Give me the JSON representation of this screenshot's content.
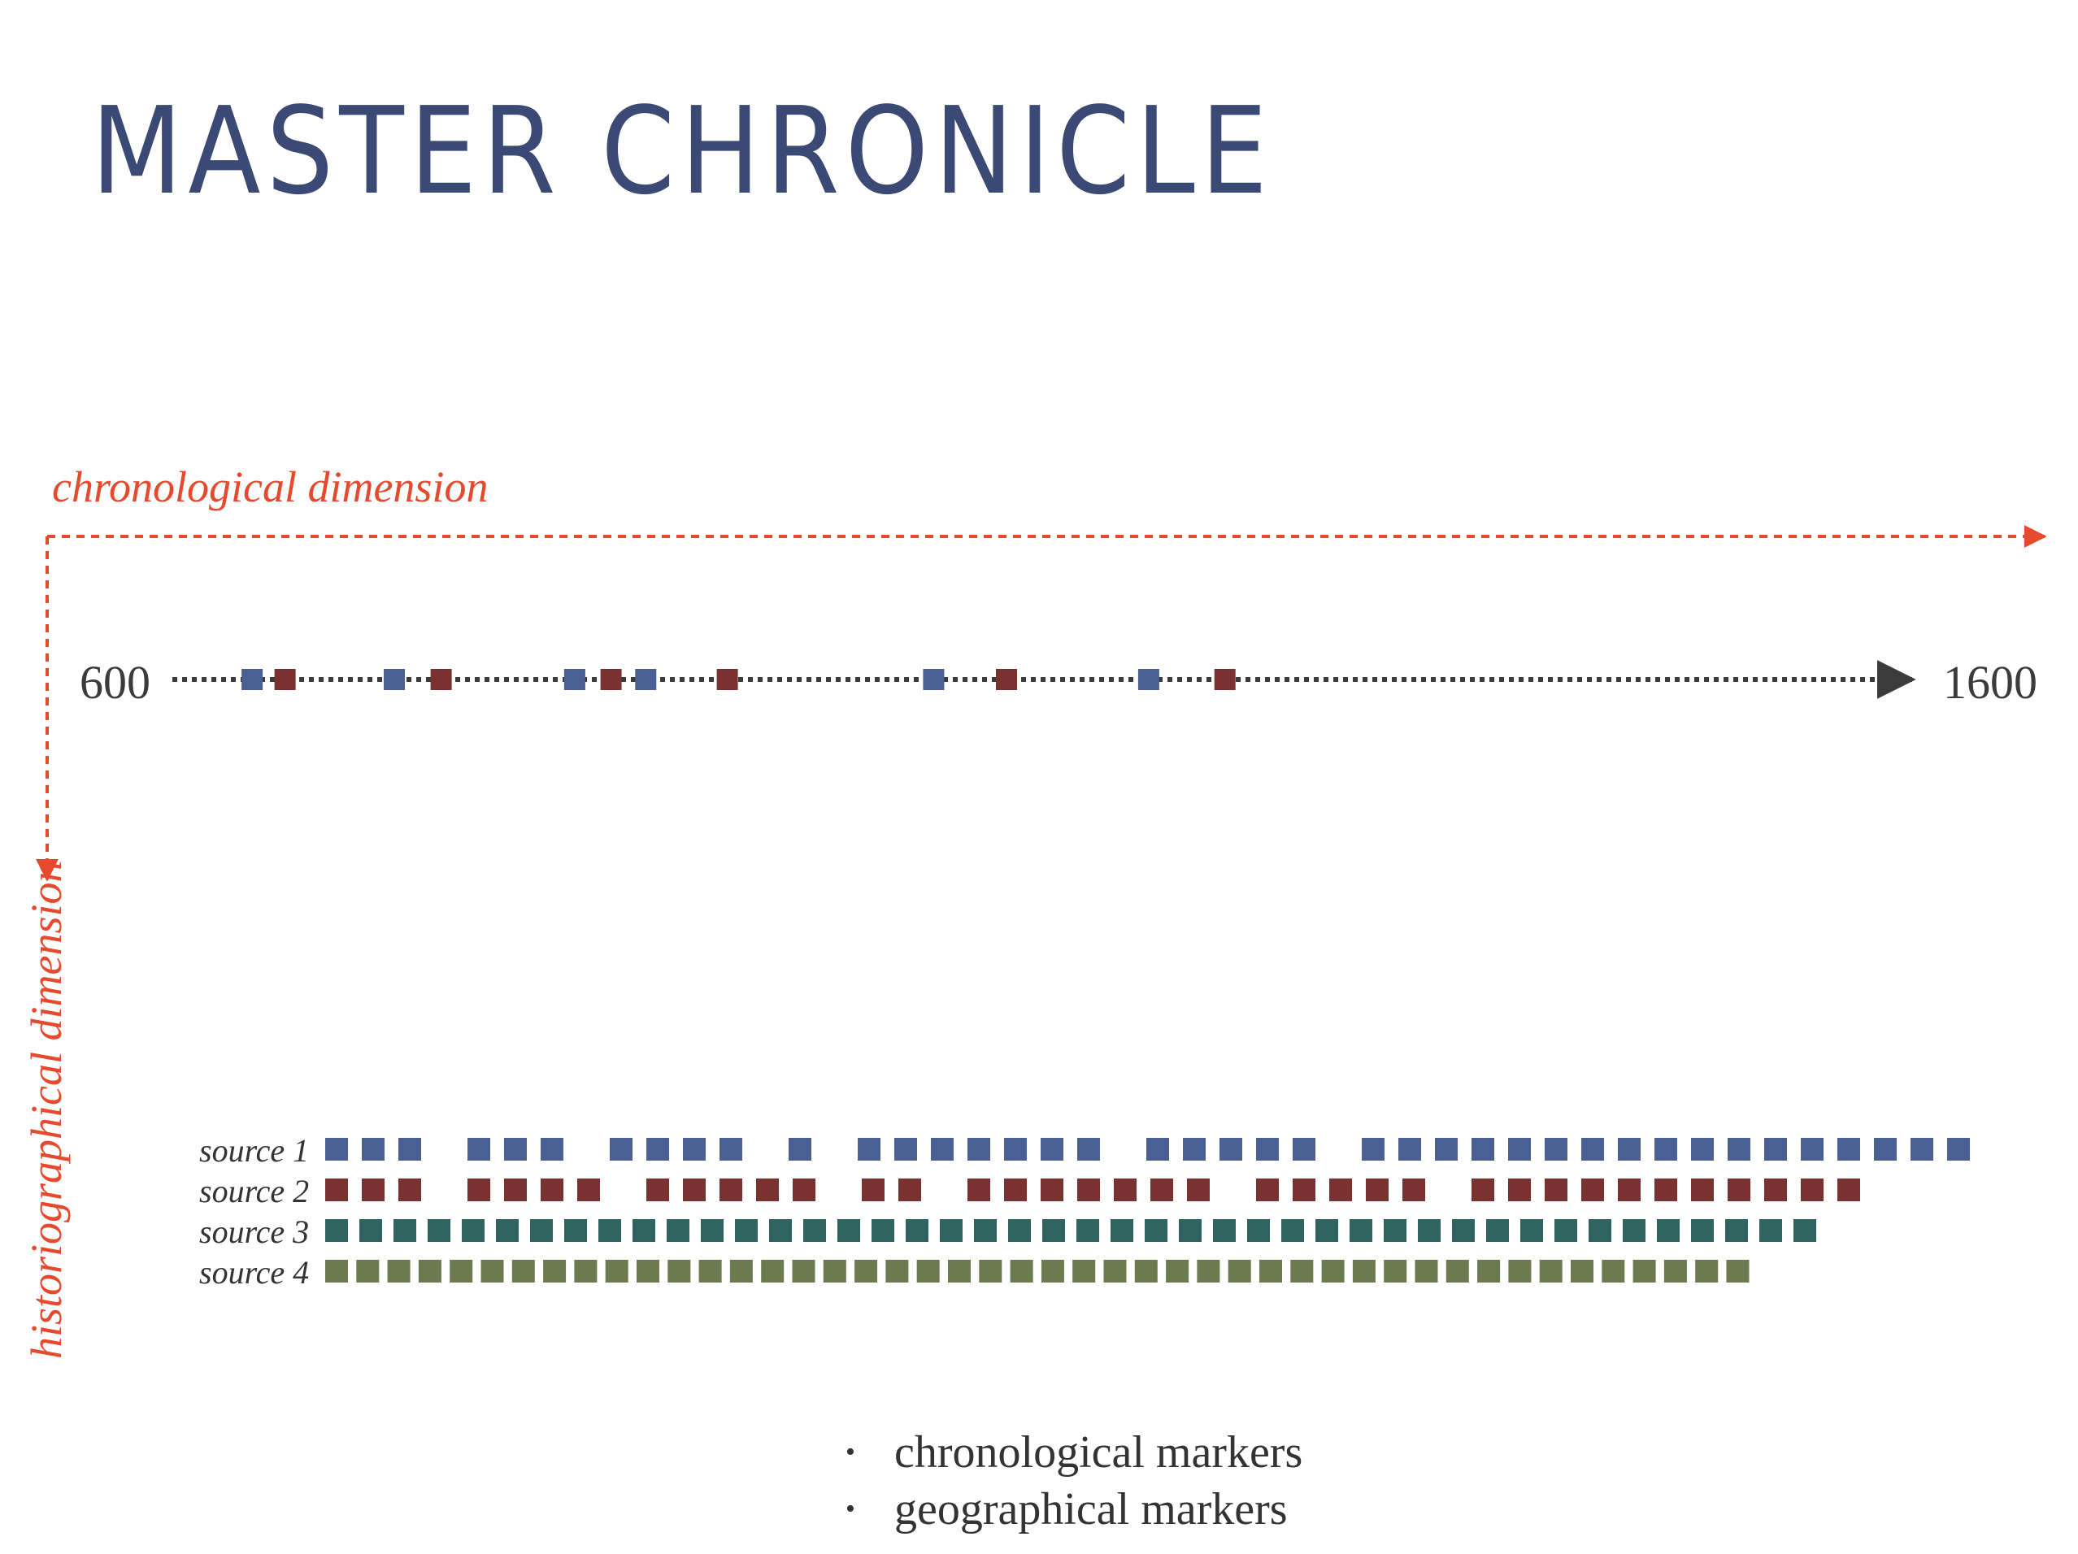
{
  "title": "MASTER CHRONICLE",
  "axes": {
    "chronological_label": "chronological dimension",
    "historiographical_label": "historiographical dimension",
    "color": "#e64a2e"
  },
  "timeline": {
    "start_label": "600",
    "end_label": "1600",
    "start": 600,
    "end": 1600,
    "line_color": "#3b3b3b",
    "markers": [
      {
        "year": 646,
        "kind": "chronological"
      },
      {
        "year": 665,
        "kind": "geographical"
      },
      {
        "year": 728,
        "kind": "chronological"
      },
      {
        "year": 755,
        "kind": "geographical"
      },
      {
        "year": 832,
        "kind": "chronological"
      },
      {
        "year": 853,
        "kind": "geographical"
      },
      {
        "year": 873,
        "kind": "chronological"
      },
      {
        "year": 920,
        "kind": "geographical"
      },
      {
        "year": 1039,
        "kind": "chronological"
      },
      {
        "year": 1081,
        "kind": "geographical"
      },
      {
        "year": 1163,
        "kind": "chronological"
      },
      {
        "year": 1207,
        "kind": "geographical"
      }
    ]
  },
  "marker_colors": {
    "chronological": "#4a5f94",
    "geographical": "#7a3230"
  },
  "sources": [
    {
      "label": "source 1",
      "color": "#4a5f94",
      "groups": [
        3,
        3,
        4,
        1,
        7,
        5,
        17
      ]
    },
    {
      "label": "source 2",
      "color": "#7a3230",
      "groups": [
        3,
        4,
        5,
        2,
        7,
        5,
        11
      ]
    },
    {
      "label": "source 3",
      "color": "#2f6460",
      "groups": [
        44
      ]
    },
    {
      "label": "source 4",
      "color": "#6b7a4f",
      "groups": [
        46
      ]
    }
  ],
  "legend": {
    "bullet": "•",
    "items": [
      "chronological markers",
      "geographical markers"
    ]
  }
}
